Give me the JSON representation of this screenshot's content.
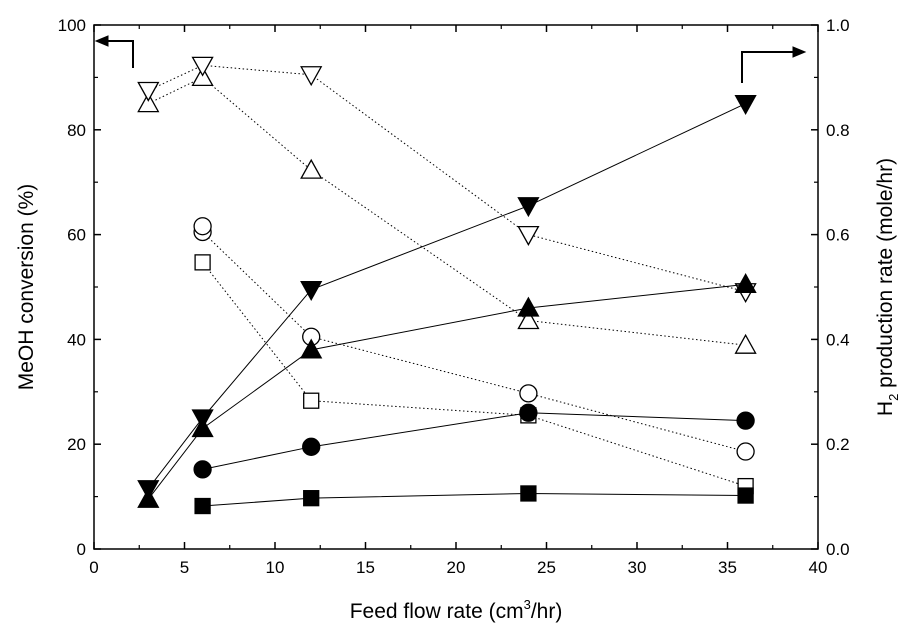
{
  "chart_data": {
    "type": "scatter",
    "title": "",
    "xlabel": {
      "pre": "Feed flow rate (cm",
      "sup": "3",
      "post": "/hr)"
    },
    "ylabel_left": "MeOH conversion (%)",
    "ylabel_right": {
      "pre": "H",
      "sub": "2",
      "post": " production rate (mole/hr)"
    },
    "xlim": [
      0,
      40
    ],
    "ylim_left": [
      0,
      100
    ],
    "ylim_right": [
      0.0,
      1.0
    ],
    "x_ticks": [
      "0",
      "5",
      "10",
      "15",
      "20",
      "25",
      "30",
      "35",
      "40"
    ],
    "y_left_ticks": [
      "0",
      "20",
      "40",
      "60",
      "80",
      "100"
    ],
    "y_right_ticks": [
      "0.0",
      "0.2",
      "0.4",
      "0.6",
      "0.8",
      "1.0"
    ],
    "grid": false,
    "legend": "none",
    "series": [
      {
        "marker": "square",
        "filled": false,
        "axis": "left",
        "line": "dotted",
        "x": [
          6,
          12,
          24,
          36
        ],
        "y": [
          54.7,
          28.3,
          25.5,
          12
        ]
      },
      {
        "marker": "circle",
        "filled": false,
        "axis": "left",
        "line": "dotted",
        "x": [
          6,
          12,
          24,
          36
        ],
        "y": [
          60.5,
          40.5,
          29.7,
          18.6
        ]
      },
      {
        "marker": "circle",
        "filled": false,
        "axis": "left",
        "line": "none",
        "x": [
          6
        ],
        "y": [
          61.6
        ]
      },
      {
        "marker": "triangle-up",
        "filled": false,
        "axis": "left",
        "line": "dotted",
        "x": [
          3,
          6,
          12,
          24,
          36
        ],
        "y": [
          85,
          90,
          72.3,
          43.6,
          38.9
        ]
      },
      {
        "marker": "triangle-down",
        "filled": false,
        "axis": "left",
        "line": "dotted",
        "x": [
          3,
          6,
          12,
          24,
          36
        ],
        "y": [
          87.5,
          92.3,
          90.5,
          60.0,
          49.1
        ]
      },
      {
        "marker": "square",
        "filled": true,
        "axis": "right",
        "line": "solid",
        "x": [
          6,
          12,
          24,
          36
        ],
        "y": [
          0.082,
          0.097,
          0.106,
          0.102
        ]
      },
      {
        "marker": "circle",
        "filled": true,
        "axis": "right",
        "line": "solid",
        "x": [
          6,
          12,
          24,
          36
        ],
        "y": [
          0.152,
          0.195,
          0.26,
          0.245
        ]
      },
      {
        "marker": "triangle-up",
        "filled": true,
        "axis": "right",
        "line": "solid",
        "x": [
          3,
          6,
          12,
          24,
          36
        ],
        "y": [
          0.095,
          0.23,
          0.38,
          0.46,
          0.505
        ]
      },
      {
        "marker": "triangle-down",
        "filled": true,
        "axis": "right",
        "line": "solid",
        "x": [
          3,
          6,
          12,
          24,
          36
        ],
        "y": [
          0.115,
          0.25,
          0.495,
          0.655,
          0.85
        ]
      }
    ],
    "annotations": [
      {
        "type": "arrow",
        "direction": "left",
        "axis": "left"
      },
      {
        "type": "arrow",
        "direction": "right",
        "axis": "right"
      }
    ]
  }
}
